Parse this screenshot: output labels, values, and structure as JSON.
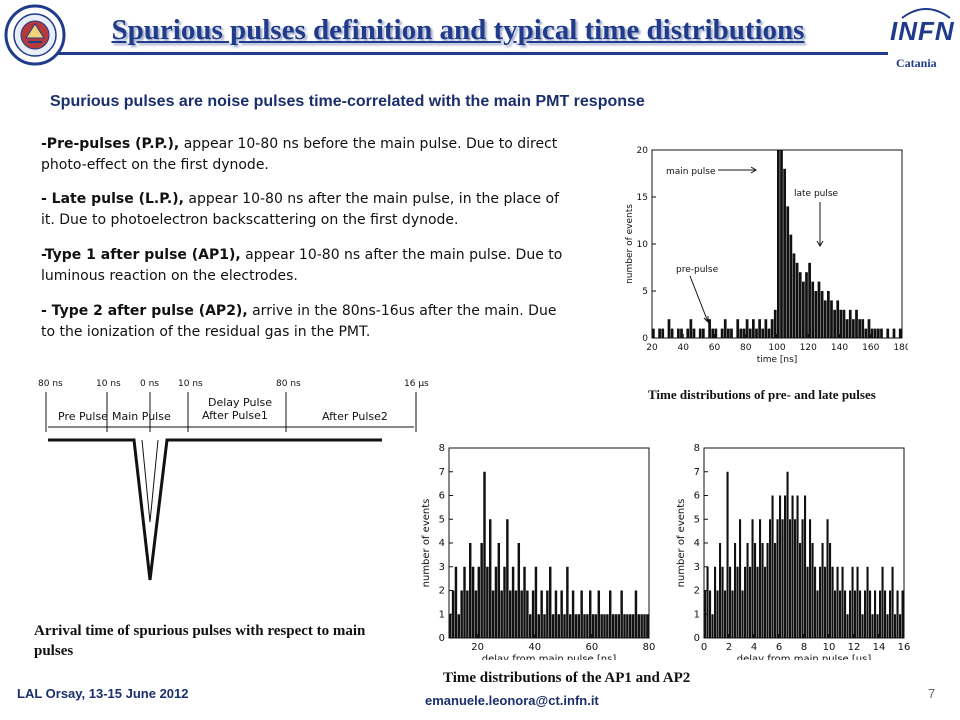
{
  "title": "Spurious pulses definition and typical time distributions",
  "subtitle": "Spurious pulses are noise pulses time-correlated with the main PMT response",
  "bullets": [
    {
      "term": "-Pre-pulses (P.P.),",
      "text": " appear 10-80 ns before the main pulse. Due to direct photo-effect on the first dynode."
    },
    {
      "term": "- Late pulse (L.P.),",
      "text": " appear 10-80 ns after the main pulse, in the place of it. Due to photoelectron backscattering on the first dynode."
    },
    {
      "term": "-Type 1 after pulse (AP1),",
      "text": " appear 10-80 ns after the main pulse. Due to luminous reaction on the electrodes."
    },
    {
      "term": "- Type 2 after pulse (AP2),",
      "text": " arrive in the 80ns-16us after the main. Due to the ionization of the residual gas in the PMT."
    }
  ],
  "logos": {
    "infn": "INFN",
    "infn_sub": "Catania",
    "left_seal": "university-seal-icon"
  },
  "diagram": {
    "time_labels": [
      "80 ns",
      "10 ns",
      "0 ns",
      "10 ns",
      "80 ns",
      "16 μs"
    ],
    "segments": [
      "Pre Pulse",
      "Main Pulse",
      "Delay Pulse\nAfter Pulse1",
      "After Pulse2"
    ]
  },
  "captions": {
    "prelate": "Time distributions of pre- and late pulses",
    "arrival": "Arrival time of spurious pulses with respect to main pulses",
    "ap": "Time distributions of the AP1 and AP2"
  },
  "footer": {
    "left": "LAL Orsay, 13-15 June 2012",
    "email": "emanuele.leonora@ct.infn.it",
    "page": "7"
  },
  "colors": {
    "title": "#1f3b8a",
    "accent": "#1a2f6b"
  },
  "chart_data": [
    {
      "type": "bar",
      "xlabel": "time [ns]",
      "ylabel": "number of events",
      "xlim": [
        20,
        180
      ],
      "ylim": [
        0,
        20
      ],
      "xticks": [
        20,
        40,
        60,
        80,
        100,
        120,
        140,
        160,
        180
      ],
      "yticks": [
        0,
        5,
        10,
        15,
        20
      ],
      "annotations": [
        "main pulse",
        "late pulse",
        "pre-pulse"
      ],
      "bin_width": 2,
      "x": [
        20,
        22,
        24,
        26,
        28,
        30,
        32,
        34,
        36,
        38,
        40,
        42,
        44,
        46,
        48,
        50,
        52,
        54,
        56,
        58,
        60,
        62,
        64,
        66,
        68,
        70,
        72,
        74,
        76,
        78,
        80,
        82,
        84,
        86,
        88,
        90,
        92,
        94,
        96,
        98,
        100,
        102,
        104,
        106,
        108,
        110,
        112,
        114,
        116,
        118,
        120,
        122,
        124,
        126,
        128,
        130,
        132,
        134,
        136,
        138,
        140,
        142,
        144,
        146,
        148,
        150,
        152,
        154,
        156,
        158,
        160,
        162,
        164,
        166,
        168,
        170,
        172,
        174,
        176,
        178
      ],
      "values": [
        1,
        0,
        1,
        1,
        0,
        2,
        1,
        0,
        1,
        1,
        0,
        1,
        2,
        1,
        0,
        1,
        1,
        0,
        2,
        1,
        1,
        0,
        1,
        2,
        1,
        1,
        0,
        2,
        1,
        1,
        2,
        1,
        2,
        1,
        2,
        1,
        2,
        1,
        2,
        3,
        20,
        20,
        18,
        14,
        11,
        9,
        8,
        7,
        6,
        7,
        8,
        6,
        5,
        6,
        5,
        4,
        5,
        4,
        3,
        4,
        3,
        3,
        2,
        3,
        2,
        3,
        2,
        2,
        1,
        2,
        1,
        1,
        1,
        1,
        0,
        1,
        0,
        1,
        0,
        1
      ]
    },
    {
      "type": "bar",
      "xlabel": "delay from main pulse [ns]",
      "ylabel": "number of events",
      "xlim": [
        10,
        80
      ],
      "ylim": [
        0,
        8
      ],
      "xticks": [
        20,
        40,
        60,
        80
      ],
      "yticks": [
        0,
        1,
        2,
        3,
        4,
        5,
        6,
        7,
        8
      ],
      "bin_width": 1,
      "x": [
        10,
        11,
        12,
        13,
        14,
        15,
        16,
        17,
        18,
        19,
        20,
        21,
        22,
        23,
        24,
        25,
        26,
        27,
        28,
        29,
        30,
        31,
        32,
        33,
        34,
        35,
        36,
        37,
        38,
        39,
        40,
        41,
        42,
        43,
        44,
        45,
        46,
        47,
        48,
        49,
        50,
        51,
        52,
        53,
        54,
        55,
        56,
        57,
        58,
        59,
        60,
        61,
        62,
        63,
        64,
        65,
        66,
        67,
        68,
        69,
        70,
        71,
        72,
        73,
        74,
        75,
        76,
        77,
        78,
        79
      ],
      "values": [
        1,
        2,
        3,
        1,
        2,
        3,
        2,
        4,
        3,
        2,
        3,
        4,
        7,
        3,
        5,
        2,
        3,
        4,
        2,
        3,
        5,
        2,
        3,
        2,
        4,
        2,
        3,
        2,
        1,
        2,
        3,
        1,
        2,
        1,
        2,
        3,
        1,
        2,
        1,
        2,
        1,
        3,
        1,
        2,
        1,
        1,
        2,
        1,
        1,
        2,
        1,
        1,
        2,
        1,
        1,
        1,
        2,
        1,
        1,
        1,
        2,
        1,
        1,
        1,
        1,
        2,
        1,
        1,
        1,
        1
      ]
    },
    {
      "type": "bar",
      "xlabel": "delay from main pulse [us]",
      "ylabel": "number of events",
      "xlim": [
        0,
        16
      ],
      "ylim": [
        0,
        8
      ],
      "xticks": [
        0,
        2,
        4,
        6,
        8,
        10,
        12,
        14,
        16
      ],
      "yticks": [
        0,
        1,
        2,
        3,
        4,
        5,
        6,
        7,
        8
      ],
      "bin_width": 0.2,
      "x": [
        0,
        0.2,
        0.4,
        0.6,
        0.8,
        1,
        1.2,
        1.4,
        1.6,
        1.8,
        2,
        2.2,
        2.4,
        2.6,
        2.8,
        3,
        3.2,
        3.4,
        3.6,
        3.8,
        4,
        4.2,
        4.4,
        4.6,
        4.8,
        5,
        5.2,
        5.4,
        5.6,
        5.8,
        6,
        6.2,
        6.4,
        6.6,
        6.8,
        7,
        7.2,
        7.4,
        7.6,
        7.8,
        8,
        8.2,
        8.4,
        8.6,
        8.8,
        9,
        9.2,
        9.4,
        9.6,
        9.8,
        10,
        10.2,
        10.4,
        10.6,
        10.8,
        11,
        11.2,
        11.4,
        11.6,
        11.8,
        12,
        12.2,
        12.4,
        12.6,
        12.8,
        13,
        13.2,
        13.4,
        13.6,
        13.8,
        14,
        14.2,
        14.4,
        14.6,
        14.8,
        15,
        15.2,
        15.4,
        15.6,
        15.8
      ],
      "values": [
        2,
        3,
        2,
        1,
        3,
        2,
        4,
        3,
        2,
        7,
        3,
        2,
        4,
        3,
        5,
        2,
        3,
        4,
        3,
        5,
        4,
        3,
        5,
        4,
        3,
        4,
        5,
        6,
        4,
        5,
        6,
        5,
        6,
        7,
        5,
        6,
        5,
        6,
        4,
        5,
        6,
        3,
        5,
        4,
        3,
        2,
        3,
        4,
        3,
        5,
        4,
        3,
        2,
        3,
        2,
        3,
        2,
        1,
        2,
        3,
        2,
        3,
        2,
        1,
        2,
        3,
        2,
        1,
        2,
        1,
        2,
        3,
        2,
        1,
        2,
        3,
        1,
        2,
        1,
        2
      ]
    }
  ]
}
